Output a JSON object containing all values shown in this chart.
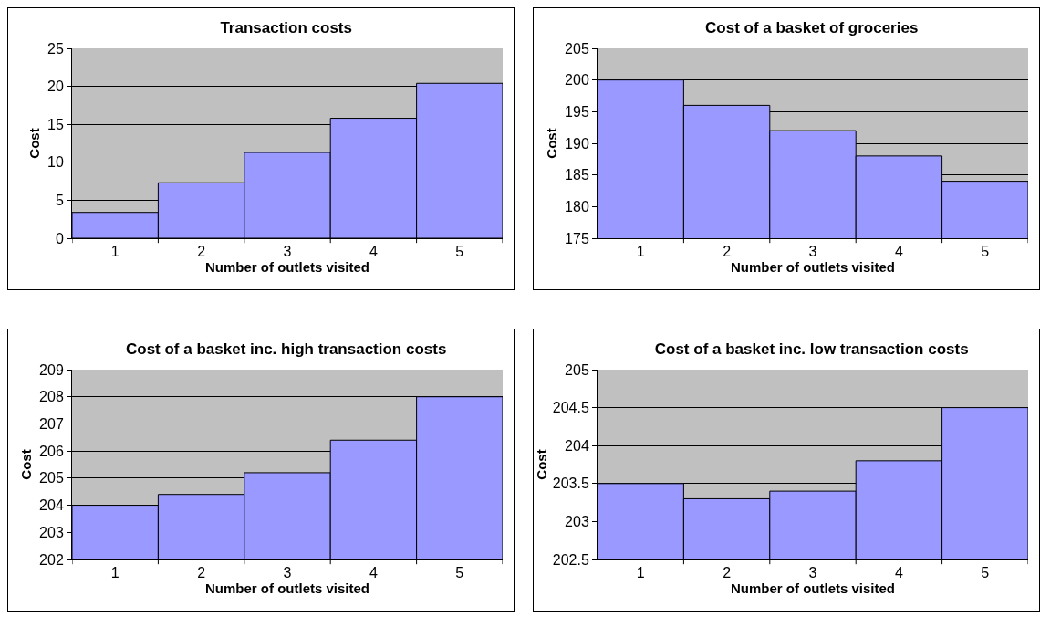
{
  "chart_data": [
    {
      "type": "bar",
      "title": "Transaction costs",
      "xlabel": "Number of outlets visited",
      "ylabel": "Cost",
      "categories": [
        "1",
        "2",
        "3",
        "4",
        "5"
      ],
      "values": [
        3.4,
        7.3,
        11.3,
        15.8,
        20.4
      ],
      "color": "#9999ff",
      "ylim": [
        0,
        25
      ],
      "yticks": [
        0,
        5,
        10,
        15,
        20,
        25
      ],
      "grid": "y"
    },
    {
      "type": "bar",
      "title": "Cost of a basket of groceries",
      "xlabel": "Number of outlets visited",
      "ylabel": "Cost",
      "categories": [
        "1",
        "2",
        "3",
        "4",
        "5"
      ],
      "values": [
        200,
        196,
        192,
        188,
        184
      ],
      "color": "#9999ff",
      "ylim": [
        175,
        205
      ],
      "yticks": [
        175,
        180,
        185,
        190,
        195,
        200,
        205
      ],
      "grid": "y"
    },
    {
      "type": "bar",
      "title": "Cost of a basket inc. high transaction costs",
      "xlabel": "Number of outlets visited",
      "ylabel": "Cost",
      "categories": [
        "1",
        "2",
        "3",
        "4",
        "5"
      ],
      "values": [
        204,
        204.4,
        205.2,
        206.4,
        208
      ],
      "color": "#9999ff",
      "ylim": [
        202,
        209
      ],
      "yticks": [
        202,
        203,
        204,
        205,
        206,
        207,
        208,
        209
      ],
      "grid": "y"
    },
    {
      "type": "bar",
      "title": "Cost of a basket inc. low transaction costs",
      "xlabel": "Number of outlets visited",
      "ylabel": "Cost",
      "categories": [
        "1",
        "2",
        "3",
        "4",
        "5"
      ],
      "values": [
        203.5,
        203.3,
        203.4,
        203.8,
        204.5
      ],
      "color": "#9999ff",
      "ylim": [
        202.5,
        205
      ],
      "yticks": [
        202.5,
        203,
        203.5,
        204,
        204.5,
        205
      ],
      "grid": "y"
    }
  ]
}
